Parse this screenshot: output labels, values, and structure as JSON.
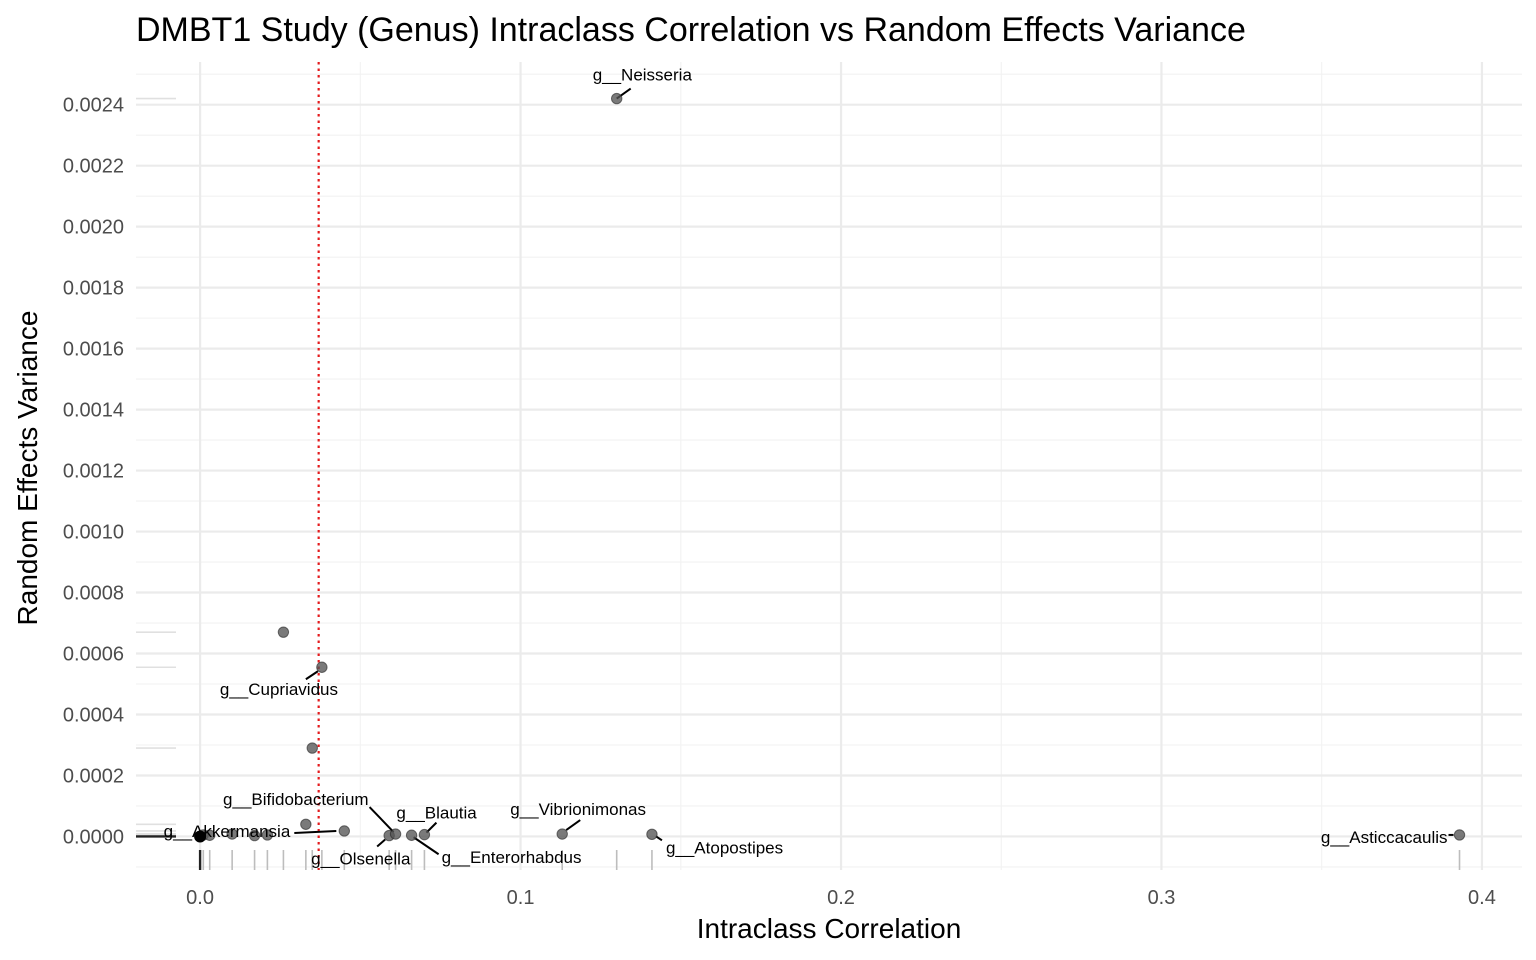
{
  "chart_data": {
    "type": "scatter",
    "title": "DMBT1 Study (Genus) Intraclass Correlation vs Random Effects Variance",
    "xlabel": "Intraclass Correlation",
    "ylabel": "Random Effects Variance",
    "xlim": [
      -0.02,
      0.4125
    ],
    "ylim": [
      -0.00011,
      0.00254
    ],
    "x_ticks": [
      0.0,
      0.1,
      0.2,
      0.3,
      0.4
    ],
    "x_tick_labels": [
      "0.0",
      "0.1",
      "0.2",
      "0.3",
      "0.4"
    ],
    "y_ticks": [
      0.0,
      0.0002,
      0.0004,
      0.0006,
      0.0008,
      0.001,
      0.0012,
      0.0014,
      0.0016,
      0.0018,
      0.002,
      0.0022,
      0.0024
    ],
    "y_tick_labels": [
      "0.0000",
      "0.0002",
      "0.0004",
      "0.0006",
      "0.0008",
      "0.0010",
      "0.0012",
      "0.0014",
      "0.0016",
      "0.0018",
      "0.0020",
      "0.0022",
      "0.0024"
    ],
    "grid": true,
    "threshold_line": {
      "axis": "x",
      "value": 0.037,
      "color": "#e41a1c",
      "style": "dotted"
    },
    "rug": true,
    "point_color": "#555555",
    "points": [
      {
        "x": 0.0,
        "y": 0.0
      },
      {
        "x": 0.001,
        "y": 5e-06
      },
      {
        "x": 0.003,
        "y": 4e-06
      },
      {
        "x": 0.01,
        "y": 8e-06
      },
      {
        "x": 0.017,
        "y": 3e-06
      },
      {
        "x": 0.021,
        "y": 5e-06
      },
      {
        "x": 0.026,
        "y": 0.00067
      },
      {
        "x": 0.033,
        "y": 4e-05
      },
      {
        "x": 0.035,
        "y": 0.00029
      },
      {
        "x": 0.038,
        "y": 0.000555,
        "label": "g__Cupriavidus"
      },
      {
        "x": 0.045,
        "y": 1.8e-05,
        "label": "g__Akkermansia"
      },
      {
        "x": 0.059,
        "y": 3e-06,
        "label": "g__Olsenella"
      },
      {
        "x": 0.061,
        "y": 8e-06,
        "label": "g__Bifidobacterium"
      },
      {
        "x": 0.066,
        "y": 4e-06,
        "label": "g__Enterorhabdus"
      },
      {
        "x": 0.07,
        "y": 6e-06,
        "label": "g__Blautia"
      },
      {
        "x": 0.113,
        "y": 8e-06,
        "label": "g__Vibrionimonas"
      },
      {
        "x": 0.13,
        "y": 0.00242,
        "label": "g__Neisseria"
      },
      {
        "x": 0.141,
        "y": 7e-06,
        "label": "g__Atopostipes"
      },
      {
        "x": 0.393,
        "y": 5e-06,
        "label": "g__Asticcacaulis"
      }
    ]
  }
}
